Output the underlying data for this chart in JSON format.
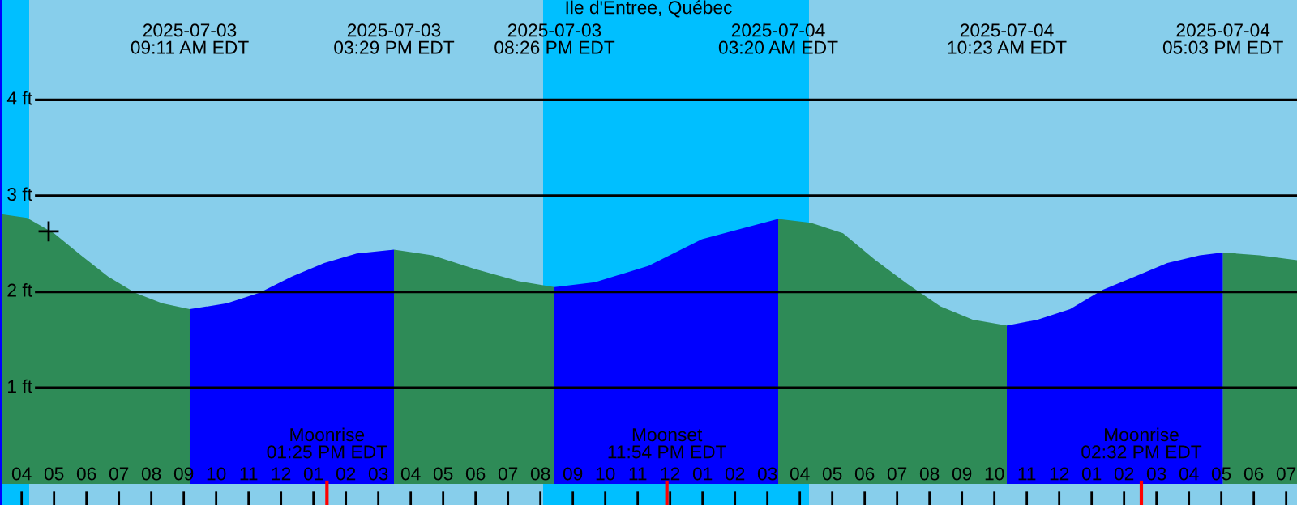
{
  "chart_data": {
    "type": "area",
    "title": "Ile d'Entree, Québec",
    "xlim": [
      "2025-07-03T03:20",
      "2025-07-04T19:20"
    ],
    "ylim": [
      -0.22,
      5.04
    ],
    "xticks": [
      {
        "value": "2025-07-03T04:00",
        "label": "04"
      },
      {
        "value": "2025-07-03T05:00",
        "label": "05"
      },
      {
        "value": "2025-07-03T06:00",
        "label": "06"
      },
      {
        "value": "2025-07-03T07:00",
        "label": "07"
      },
      {
        "value": "2025-07-03T08:00",
        "label": "08"
      },
      {
        "value": "2025-07-03T09:00",
        "label": "09"
      },
      {
        "value": "2025-07-03T10:00",
        "label": "10"
      },
      {
        "value": "2025-07-03T11:00",
        "label": "11"
      },
      {
        "value": "2025-07-03T12:00",
        "label": "12"
      },
      {
        "value": "2025-07-03T13:00",
        "label": "01"
      },
      {
        "value": "2025-07-03T14:00",
        "label": "02"
      },
      {
        "value": "2025-07-03T15:00",
        "label": "03"
      },
      {
        "value": "2025-07-03T16:00",
        "label": "04"
      },
      {
        "value": "2025-07-03T17:00",
        "label": "05"
      },
      {
        "value": "2025-07-03T18:00",
        "label": "06"
      },
      {
        "value": "2025-07-03T19:00",
        "label": "07"
      },
      {
        "value": "2025-07-03T20:00",
        "label": "08"
      },
      {
        "value": "2025-07-03T21:00",
        "label": "09"
      },
      {
        "value": "2025-07-03T22:00",
        "label": "10"
      },
      {
        "value": "2025-07-03T23:00",
        "label": "11"
      },
      {
        "value": "2025-07-04T00:00",
        "label": "12"
      },
      {
        "value": "2025-07-04T01:00",
        "label": "01"
      },
      {
        "value": "2025-07-04T02:00",
        "label": "02"
      },
      {
        "value": "2025-07-04T03:00",
        "label": "03"
      },
      {
        "value": "2025-07-04T04:00",
        "label": "04"
      },
      {
        "value": "2025-07-04T05:00",
        "label": "05"
      },
      {
        "value": "2025-07-04T06:00",
        "label": "06"
      },
      {
        "value": "2025-07-04T07:00",
        "label": "07"
      },
      {
        "value": "2025-07-04T08:00",
        "label": "08"
      },
      {
        "value": "2025-07-04T09:00",
        "label": "09"
      },
      {
        "value": "2025-07-04T10:00",
        "label": "10"
      },
      {
        "value": "2025-07-04T11:00",
        "label": "11"
      },
      {
        "value": "2025-07-04T12:00",
        "label": "12"
      },
      {
        "value": "2025-07-04T13:00",
        "label": "01"
      },
      {
        "value": "2025-07-04T14:00",
        "label": "02"
      },
      {
        "value": "2025-07-04T15:00",
        "label": "03"
      },
      {
        "value": "2025-07-04T16:00",
        "label": "04"
      },
      {
        "value": "2025-07-04T17:00",
        "label": "05"
      },
      {
        "value": "2025-07-04T18:00",
        "label": "06"
      },
      {
        "value": "2025-07-04T19:00",
        "label": "07"
      }
    ],
    "yticks": [
      {
        "value": 1,
        "label": "1 ft"
      },
      {
        "value": 2,
        "label": "2 ft"
      },
      {
        "value": 3,
        "label": "3 ft"
      },
      {
        "value": 4,
        "label": "4 ft"
      }
    ],
    "grid": "y",
    "bands": [
      {
        "axis": "x",
        "from": "2025-07-03T03:20",
        "to": "2025-07-03T04:14",
        "color": "#00bfff"
      },
      {
        "axis": "x",
        "from": "2025-07-03T04:14",
        "to": "2025-07-03T20:05",
        "color": "#87ceeb"
      },
      {
        "axis": "x",
        "from": "2025-07-03T20:05",
        "to": "2025-07-04T04:17",
        "color": "#00bfff"
      },
      {
        "axis": "x",
        "from": "2025-07-04T04:17",
        "to": "2025-07-04T19:20",
        "color": "#87ceeb"
      }
    ],
    "series": [
      {
        "color": "#2e8b57",
        "x": [
          "2025-07-03T03:20",
          "2025-07-03T04:10",
          "2025-07-03T05:00",
          "2025-07-03T05:50",
          "2025-07-03T06:40",
          "2025-07-03T07:30",
          "2025-07-03T08:20",
          "2025-07-03T09:11"
        ],
        "values": [
          2.81,
          2.77,
          2.61,
          2.38,
          2.16,
          1.99,
          1.88,
          1.82
        ]
      },
      {
        "color": "#0000ff",
        "x": [
          "2025-07-03T09:11",
          "2025-07-03T10:20",
          "2025-07-03T11:20",
          "2025-07-03T12:20",
          "2025-07-03T13:20",
          "2025-07-03T14:20",
          "2025-07-03T15:29"
        ],
        "values": [
          1.82,
          1.88,
          1.99,
          2.16,
          2.3,
          2.4,
          2.44
        ]
      },
      {
        "color": "#2e8b57",
        "x": [
          "2025-07-03T15:29",
          "2025-07-03T16:40",
          "2025-07-03T17:58",
          "2025-07-03T19:20",
          "2025-07-03T20:26"
        ],
        "values": [
          2.44,
          2.38,
          2.24,
          2.11,
          2.05
        ]
      },
      {
        "color": "#0000ff",
        "x": [
          "2025-07-03T20:26",
          "2025-07-03T21:41",
          "2025-07-03T23:20",
          "2025-07-04T00:59",
          "2025-07-04T03:20"
        ],
        "values": [
          2.05,
          2.1,
          2.27,
          2.55,
          2.76
        ]
      },
      {
        "color": "#2e8b57",
        "x": [
          "2025-07-04T03:20",
          "2025-07-04T04:20",
          "2025-07-04T05:20",
          "2025-07-04T06:20",
          "2025-07-04T07:20",
          "2025-07-04T08:20",
          "2025-07-04T09:20",
          "2025-07-04T10:23"
        ],
        "values": [
          2.76,
          2.72,
          2.61,
          2.33,
          2.08,
          1.85,
          1.71,
          1.65
        ]
      },
      {
        "color": "#0000ff",
        "x": [
          "2025-07-04T10:23",
          "2025-07-04T11:20",
          "2025-07-04T12:20",
          "2025-07-04T13:20",
          "2025-07-04T14:20",
          "2025-07-04T15:20",
          "2025-07-04T16:20",
          "2025-07-04T17:03"
        ],
        "values": [
          1.65,
          1.71,
          1.82,
          2.02,
          2.16,
          2.3,
          2.38,
          2.41
        ]
      },
      {
        "color": "#2e8b57",
        "x": [
          "2025-07-04T17:03",
          "2025-07-04T18:11",
          "2025-07-04T19:20"
        ],
        "values": [
          2.41,
          2.38,
          2.33
        ]
      },
      {
        "type": "scatter",
        "color": "#000000",
        "marker": "cross",
        "x": [
          "2025-07-03T04:50"
        ],
        "values": [
          2.63
        ]
      }
    ],
    "ref_lines": [
      {
        "axis": "x",
        "value": "2025-07-03T13:25",
        "label": "Moonrise\n01:25 PM EDT",
        "color": "#ff0000"
      },
      {
        "axis": "x",
        "value": "2025-07-03T23:54",
        "label": "Moonset\n11:54 PM EDT",
        "color": "#ff0000"
      },
      {
        "axis": "x",
        "value": "2025-07-04T14:32",
        "label": "Moonrise\n02:32 PM EDT",
        "color": "#ff0000"
      }
    ],
    "annotations": [
      "2025-07-03\n09:11 AM EDT",
      "2025-07-03\n03:29 PM EDT",
      "2025-07-03\n08:26 PM EDT",
      "2025-07-04\n03:20 AM EDT",
      "2025-07-04\n10:23 AM EDT",
      "2025-07-04\n05:03 PM EDT"
    ]
  }
}
